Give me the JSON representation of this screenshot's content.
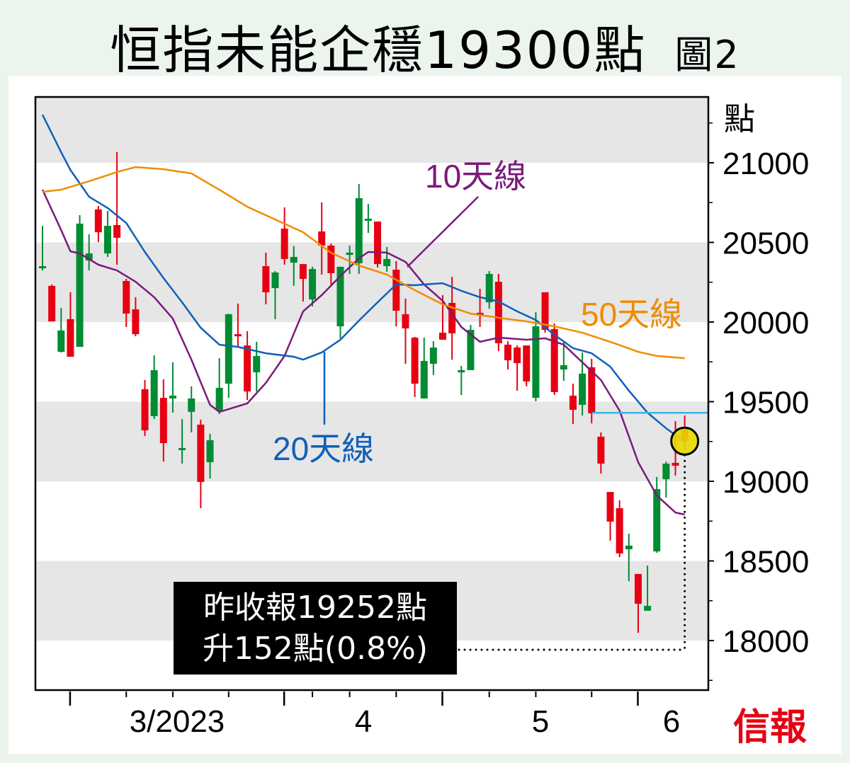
{
  "title": {
    "main": "恒指未能企穩19300點",
    "figure": "圖2"
  },
  "note": {
    "line1": "昨收報19252點",
    "line2": "升152點(0.8%)"
  },
  "logo": "信報",
  "colors": {
    "up_body": "#e60012",
    "down_body": "#008c32",
    "ma10": "#7b1a7b",
    "ma20": "#1060b8",
    "ma50": "#f08c00",
    "level_line": "#3ab4e6",
    "highlight": "#e8d800",
    "band": "#e6e6e6",
    "background": "#ebf5ee"
  },
  "chart_data": {
    "type": "candlestick",
    "title": "恒指未能企穩19300點",
    "y_unit_label": "點",
    "ylim": [
      17690,
      21410
    ],
    "y_ticks": [
      21000,
      20500,
      20000,
      19500,
      19000,
      18500,
      18000
    ],
    "y_tick_labels": [
      "21000",
      "20500",
      "20000",
      "19500",
      "19000",
      "18500",
      "18000"
    ],
    "shaded_bands": [
      [
        21000,
        21410
      ],
      [
        20000,
        20500
      ],
      [
        19000,
        19500
      ],
      [
        18000,
        18500
      ]
    ],
    "x_labels": [
      "3/2023",
      "4",
      "5",
      "6"
    ],
    "candle_fields": [
      "open",
      "high",
      "low",
      "close",
      "color"
    ],
    "candles": [
      [
        20338,
        20604,
        20324,
        20351,
        "g"
      ],
      [
        20227,
        20236,
        20004,
        20004,
        "r"
      ],
      [
        19813,
        20089,
        19809,
        19947,
        "g"
      ],
      [
        20018,
        20187,
        19782,
        19782,
        "r"
      ],
      [
        19844,
        20671,
        19844,
        20618,
        "g"
      ],
      [
        20387,
        20551,
        20324,
        20431,
        "g"
      ],
      [
        20707,
        20729,
        20502,
        20564,
        "r"
      ],
      [
        20431,
        20698,
        20409,
        20604,
        "g"
      ],
      [
        20609,
        21067,
        20360,
        20529,
        "r"
      ],
      [
        20258,
        20271,
        19969,
        20053,
        "r"
      ],
      [
        20080,
        20156,
        19911,
        19924,
        "r"
      ],
      [
        19578,
        19636,
        19284,
        19320,
        "r"
      ],
      [
        19409,
        19791,
        19391,
        19698,
        "g"
      ],
      [
        19524,
        19640,
        19124,
        19240,
        "r"
      ],
      [
        19520,
        19747,
        19431,
        19538,
        "g"
      ],
      [
        19196,
        19391,
        19111,
        19209,
        "g"
      ],
      [
        19436,
        19596,
        19307,
        19520,
        "g"
      ],
      [
        19356,
        19387,
        18831,
        18996,
        "r"
      ],
      [
        19120,
        19298,
        19018,
        19258,
        "g"
      ],
      [
        19444,
        19773,
        19422,
        19587,
        "g"
      ],
      [
        19613,
        20053,
        19524,
        20049,
        "g"
      ],
      [
        19924,
        20116,
        19844,
        19916,
        "r"
      ],
      [
        19853,
        19942,
        19511,
        19564,
        "r"
      ],
      [
        19684,
        19876,
        19564,
        19787,
        "g"
      ],
      [
        20351,
        20436,
        20111,
        20187,
        "r"
      ],
      [
        20213,
        20320,
        20018,
        20311,
        "g"
      ],
      [
        20587,
        20720,
        20360,
        20396,
        "r"
      ],
      [
        20373,
        20476,
        20227,
        20409,
        "g"
      ],
      [
        20364,
        20364,
        20129,
        20271,
        "r"
      ],
      [
        20142,
        20347,
        20098,
        20333,
        "g"
      ],
      [
        20569,
        20751,
        20298,
        20480,
        "r"
      ],
      [
        20480,
        20493,
        20236,
        20307,
        "r"
      ],
      [
        19973,
        20347,
        19898,
        20347,
        "g"
      ],
      [
        20422,
        20480,
        20302,
        20436,
        "g"
      ],
      [
        20369,
        20867,
        20302,
        20778,
        "g"
      ],
      [
        20640,
        20742,
        20560,
        20649,
        "g"
      ],
      [
        20631,
        20631,
        20342,
        20364,
        "r"
      ],
      [
        20351,
        20471,
        20316,
        20396,
        "g"
      ],
      [
        20329,
        20382,
        19973,
        20071,
        "r"
      ],
      [
        20049,
        20147,
        19738,
        19960,
        "r"
      ],
      [
        19902,
        19907,
        19529,
        19613,
        "r"
      ],
      [
        19520,
        19902,
        19520,
        19756,
        "g"
      ],
      [
        19738,
        19880,
        19667,
        19840,
        "g"
      ],
      [
        19933,
        20169,
        19889,
        19889,
        "r"
      ],
      [
        20120,
        20284,
        19764,
        19929,
        "r"
      ],
      [
        19684,
        19724,
        19542,
        19698,
        "g"
      ],
      [
        19698,
        19982,
        19698,
        19951,
        "g"
      ],
      [
        20058,
        20209,
        19969,
        20044,
        "r"
      ],
      [
        20124,
        20320,
        20084,
        20302,
        "g"
      ],
      [
        20253,
        20302,
        19818,
        19867,
        "r"
      ],
      [
        19858,
        19880,
        19702,
        19760,
        "r"
      ],
      [
        19840,
        19853,
        19569,
        19742,
        "r"
      ],
      [
        19853,
        19853,
        19596,
        19627,
        "r"
      ],
      [
        19524,
        20062,
        19502,
        19973,
        "g"
      ],
      [
        20187,
        20187,
        19933,
        19951,
        "r"
      ],
      [
        19956,
        19991,
        19542,
        19560,
        "r"
      ],
      [
        19702,
        19880,
        19631,
        19729,
        "g"
      ],
      [
        19538,
        19613,
        19360,
        19449,
        "r"
      ],
      [
        19480,
        19809,
        19413,
        19676,
        "g"
      ],
      [
        19716,
        19769,
        19364,
        19427,
        "r"
      ],
      [
        19280,
        19307,
        19049,
        19111,
        "r"
      ],
      [
        18933,
        18933,
        18627,
        18747,
        "r"
      ],
      [
        18831,
        18880,
        18524,
        18547,
        "r"
      ],
      [
        18573,
        18671,
        18373,
        18596,
        "g"
      ],
      [
        18418,
        18418,
        18049,
        18231,
        "r"
      ],
      [
        18187,
        18471,
        18187,
        18218,
        "g"
      ],
      [
        18560,
        19027,
        18551,
        18951,
        "g"
      ],
      [
        19013,
        19124,
        18898,
        19111,
        "g"
      ],
      [
        19116,
        19378,
        19036,
        19098,
        "r"
      ],
      [
        19329,
        19413,
        19196,
        19252,
        "r"
      ]
    ],
    "moving_averages": [
      {
        "name": "10天線",
        "points": [
          [
            0,
            20831
          ],
          [
            2,
            20578
          ],
          [
            3,
            20444
          ],
          [
            4,
            20431
          ],
          [
            6,
            20360
          ],
          [
            8,
            20324
          ],
          [
            10,
            20253
          ],
          [
            12,
            20156
          ],
          [
            14,
            20022
          ],
          [
            16,
            19764
          ],
          [
            18,
            19480
          ],
          [
            19,
            19436
          ],
          [
            20,
            19453
          ],
          [
            22,
            19489
          ],
          [
            24,
            19618
          ],
          [
            26,
            19787
          ],
          [
            28,
            20067
          ],
          [
            30,
            20169
          ],
          [
            32,
            20289
          ],
          [
            34,
            20400
          ],
          [
            35,
            20440
          ],
          [
            37,
            20436
          ],
          [
            39,
            20378
          ],
          [
            41,
            20236
          ],
          [
            43,
            20133
          ],
          [
            45,
            19969
          ],
          [
            47,
            19876
          ],
          [
            49,
            19902
          ],
          [
            52,
            19889
          ],
          [
            54,
            19898
          ],
          [
            56,
            19858
          ],
          [
            58,
            19747
          ],
          [
            60,
            19636
          ],
          [
            62,
            19444
          ],
          [
            64,
            19120
          ],
          [
            66,
            18911
          ],
          [
            68,
            18804
          ],
          [
            69,
            18791
          ]
        ]
      },
      {
        "name": "20天線",
        "points": [
          [
            0,
            21302
          ],
          [
            2,
            21067
          ],
          [
            3,
            20955
          ],
          [
            5,
            20787
          ],
          [
            7,
            20716
          ],
          [
            9,
            20622
          ],
          [
            11,
            20440
          ],
          [
            13,
            20276
          ],
          [
            15,
            20124
          ],
          [
            17,
            19964
          ],
          [
            19,
            19858
          ],
          [
            21,
            19844
          ],
          [
            24,
            19804
          ],
          [
            27,
            19782
          ],
          [
            28,
            19764
          ],
          [
            30,
            19809
          ],
          [
            32,
            19889
          ],
          [
            34,
            20009
          ],
          [
            36,
            20124
          ],
          [
            38,
            20236
          ],
          [
            40,
            20231
          ],
          [
            42,
            20240
          ],
          [
            43,
            20244
          ],
          [
            45,
            20196
          ],
          [
            47,
            20156
          ],
          [
            49,
            20129
          ],
          [
            51,
            20067
          ],
          [
            53,
            20013
          ],
          [
            55,
            19920
          ],
          [
            57,
            19836
          ],
          [
            59,
            19804
          ],
          [
            61,
            19720
          ],
          [
            63,
            19569
          ],
          [
            65,
            19431
          ],
          [
            67,
            19333
          ],
          [
            69,
            19249
          ]
        ]
      },
      {
        "name": "50天線",
        "points": [
          [
            0,
            20818
          ],
          [
            2,
            20831
          ],
          [
            5,
            20884
          ],
          [
            8,
            20942
          ],
          [
            10,
            20973
          ],
          [
            13,
            20960
          ],
          [
            16,
            20933
          ],
          [
            19,
            20831
          ],
          [
            22,
            20724
          ],
          [
            25,
            20644
          ],
          [
            28,
            20564
          ],
          [
            31,
            20435
          ],
          [
            34,
            20355
          ],
          [
            37,
            20298
          ],
          [
            40,
            20200
          ],
          [
            43,
            20111
          ],
          [
            46,
            20053
          ],
          [
            49,
            20027
          ],
          [
            52,
            20004
          ],
          [
            55,
            19973
          ],
          [
            58,
            19933
          ],
          [
            61,
            19876
          ],
          [
            64,
            19813
          ],
          [
            66,
            19787
          ],
          [
            69,
            19773
          ]
        ]
      }
    ],
    "level_line": 19430,
    "highlight_point": {
      "index": 69,
      "value": 19252
    }
  }
}
